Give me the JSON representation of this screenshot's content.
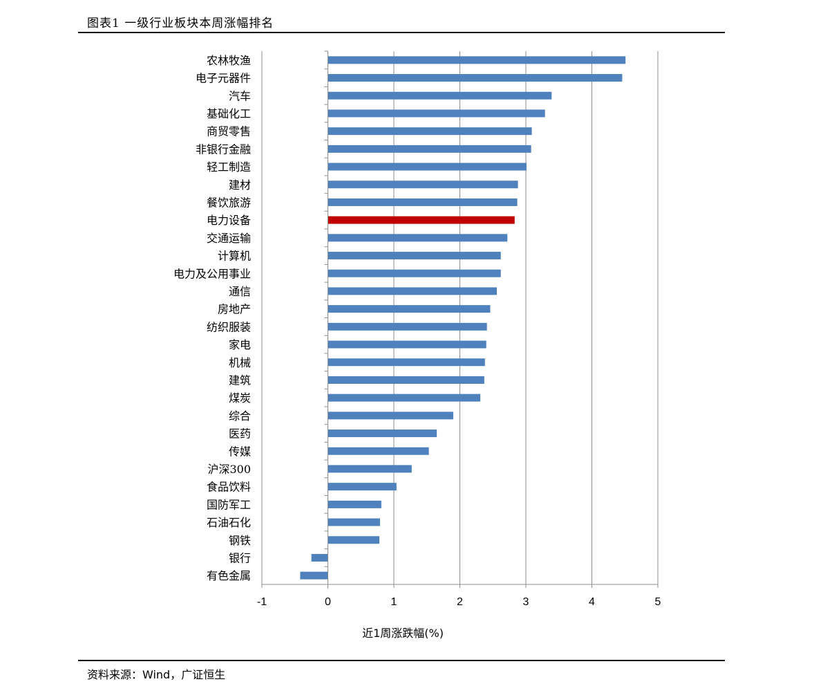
{
  "figure": {
    "title": "图表1 一级行业板块本周涨幅排名",
    "source": "资料来源：Wind，广证恒生"
  },
  "colors": {
    "bar": "#4f81bd",
    "highlight": "#c00000",
    "grid": "#8c8c8c",
    "axis": "#8c8c8c"
  },
  "chart_data": {
    "type": "bar",
    "orientation": "horizontal",
    "title": "",
    "xlabel": "近1周涨跌幅(%)",
    "ylabel": "",
    "xlim": [
      -1,
      5
    ],
    "xticks": [
      -1,
      0,
      1,
      2,
      3,
      4,
      5
    ],
    "grid": "vertical",
    "legend": "none",
    "highlight_category": "电力设备",
    "categories": [
      "农林牧渔",
      "电子元器件",
      "汽车",
      "基础化工",
      "商贸零售",
      "非银行金融",
      "轻工制造",
      "建材",
      "餐饮旅游",
      "电力设备",
      "交通运输",
      "计算机",
      "电力及公用事业",
      "通信",
      "房地产",
      "纺织服装",
      "家电",
      "机械",
      "建筑",
      "煤炭",
      "综合",
      "医药",
      "传媒",
      "沪深300",
      "食品饮料",
      "国防军工",
      "石油石化",
      "钢铁",
      "银行",
      "有色金属"
    ],
    "values": [
      4.51,
      4.46,
      3.39,
      3.29,
      3.09,
      3.08,
      3.01,
      2.88,
      2.87,
      2.83,
      2.72,
      2.62,
      2.62,
      2.56,
      2.46,
      2.41,
      2.4,
      2.38,
      2.37,
      2.31,
      1.9,
      1.65,
      1.53,
      1.27,
      1.04,
      0.81,
      0.79,
      0.78,
      -0.25,
      -0.42
    ]
  }
}
